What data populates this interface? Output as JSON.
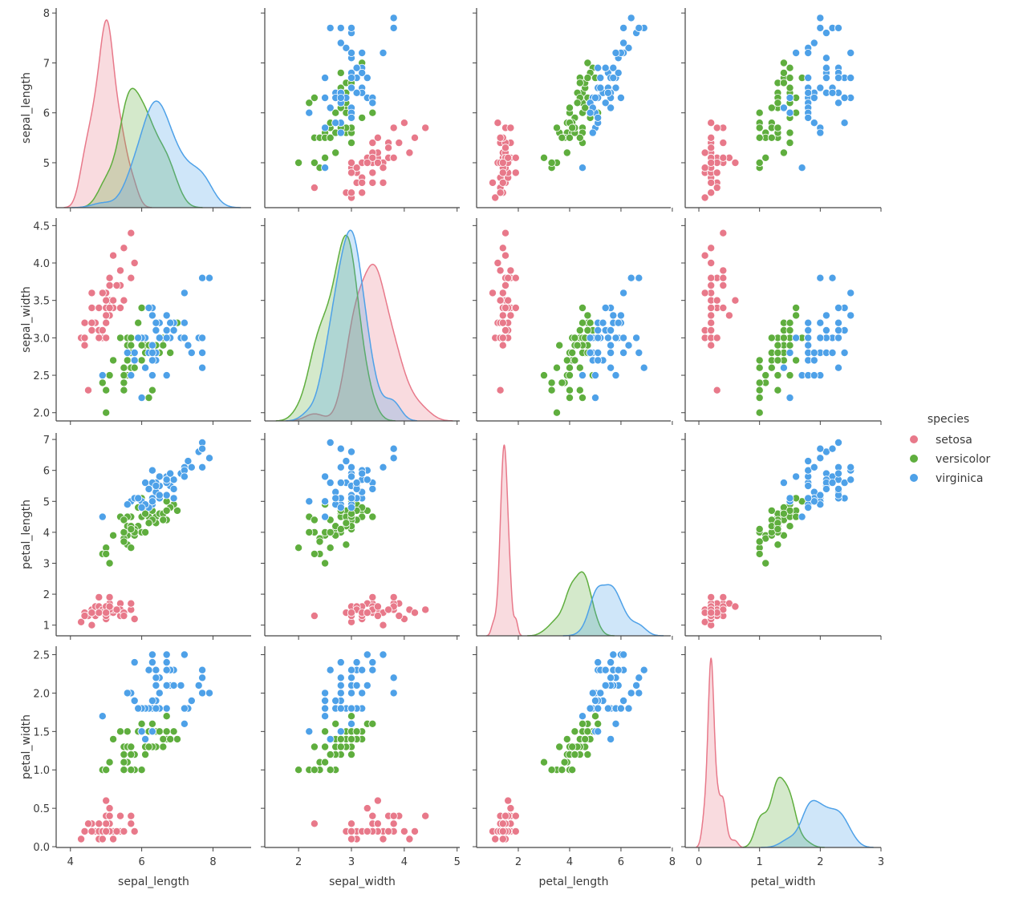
{
  "chart_data": {
    "type": "scatter",
    "title": "",
    "subtitle": "pairplot (scatter off-diagonal, KDE on diagonal)",
    "variables": [
      "sepal_length",
      "sepal_width",
      "petal_length",
      "petal_width"
    ],
    "axis_ranges": {
      "sepal_length": [
        3.6,
        9.07
      ],
      "sepal_width": [
        1.36,
        5.05
      ],
      "petal_length": [
        0.375,
        7.94
      ],
      "petal_width": [
        -0.225,
        3.0
      ]
    },
    "row_ranges": {
      "sepal_length": [
        4.1,
        8.1
      ],
      "sepal_width": [
        1.89,
        4.6
      ],
      "petal_length": [
        0.655,
        7.21
      ],
      "petal_width": [
        -0.01,
        2.61
      ]
    },
    "x_ticks": {
      "sepal_length": [
        "4",
        "6",
        "8"
      ],
      "sepal_width": [
        "2",
        "3",
        "4",
        "5"
      ],
      "petal_length": [
        "2",
        "4",
        "6",
        "8"
      ],
      "petal_width": [
        "0",
        "1",
        "2",
        "3"
      ]
    },
    "y_ticks": {
      "sepal_length": [
        "5",
        "6",
        "7",
        "8"
      ],
      "sepal_width": [
        "2.0",
        "2.5",
        "3.0",
        "3.5",
        "4.0",
        "4.5"
      ],
      "petal_length": [
        "1",
        "2",
        "3",
        "4",
        "5",
        "6",
        "7"
      ],
      "petal_width": [
        "0.0",
        "0.5",
        "1.0",
        "1.5",
        "2.0",
        "2.5"
      ]
    },
    "grid": false,
    "legend": {
      "title": "species",
      "placement": "right",
      "entries": [
        "setosa",
        "versicolor",
        "virginica"
      ]
    },
    "colors": {
      "setosa": "#e8798a",
      "versicolor": "#5fae3e",
      "virginica": "#4ea1e8"
    },
    "series": [
      {
        "name": "setosa",
        "points": [
          [
            5.1,
            3.5,
            1.4,
            0.2
          ],
          [
            4.9,
            3.0,
            1.4,
            0.2
          ],
          [
            4.7,
            3.2,
            1.3,
            0.2
          ],
          [
            4.6,
            3.1,
            1.5,
            0.2
          ],
          [
            5.0,
            3.6,
            1.4,
            0.2
          ],
          [
            5.4,
            3.9,
            1.7,
            0.4
          ],
          [
            4.6,
            3.4,
            1.4,
            0.3
          ],
          [
            5.0,
            3.4,
            1.5,
            0.2
          ],
          [
            4.4,
            2.9,
            1.4,
            0.2
          ],
          [
            4.9,
            3.1,
            1.5,
            0.1
          ],
          [
            5.4,
            3.7,
            1.5,
            0.2
          ],
          [
            4.8,
            3.4,
            1.6,
            0.2
          ],
          [
            4.8,
            3.0,
            1.4,
            0.1
          ],
          [
            4.3,
            3.0,
            1.1,
            0.1
          ],
          [
            5.8,
            4.0,
            1.2,
            0.2
          ],
          [
            5.7,
            4.4,
            1.5,
            0.4
          ],
          [
            5.4,
            3.9,
            1.3,
            0.4
          ],
          [
            5.1,
            3.5,
            1.4,
            0.3
          ],
          [
            5.7,
            3.8,
            1.7,
            0.3
          ],
          [
            5.1,
            3.8,
            1.5,
            0.3
          ],
          [
            5.4,
            3.4,
            1.7,
            0.2
          ],
          [
            5.1,
            3.7,
            1.5,
            0.4
          ],
          [
            4.6,
            3.6,
            1.0,
            0.2
          ],
          [
            5.1,
            3.3,
            1.7,
            0.5
          ],
          [
            4.8,
            3.4,
            1.9,
            0.2
          ],
          [
            5.0,
            3.0,
            1.6,
            0.2
          ],
          [
            5.0,
            3.4,
            1.6,
            0.4
          ],
          [
            5.2,
            3.5,
            1.5,
            0.2
          ],
          [
            5.2,
            3.4,
            1.4,
            0.2
          ],
          [
            4.7,
            3.2,
            1.6,
            0.2
          ],
          [
            4.8,
            3.1,
            1.6,
            0.2
          ],
          [
            5.4,
            3.4,
            1.5,
            0.4
          ],
          [
            5.2,
            4.1,
            1.5,
            0.1
          ],
          [
            5.5,
            4.2,
            1.4,
            0.2
          ],
          [
            4.9,
            3.1,
            1.5,
            0.2
          ],
          [
            5.0,
            3.2,
            1.2,
            0.2
          ],
          [
            5.5,
            3.5,
            1.3,
            0.2
          ],
          [
            4.9,
            3.6,
            1.4,
            0.1
          ],
          [
            4.4,
            3.0,
            1.3,
            0.2
          ],
          [
            5.1,
            3.4,
            1.5,
            0.2
          ],
          [
            5.0,
            3.5,
            1.3,
            0.3
          ],
          [
            4.5,
            2.3,
            1.3,
            0.3
          ],
          [
            4.4,
            3.2,
            1.3,
            0.2
          ],
          [
            5.0,
            3.5,
            1.6,
            0.6
          ],
          [
            5.1,
            3.8,
            1.9,
            0.4
          ],
          [
            4.8,
            3.0,
            1.4,
            0.3
          ],
          [
            5.1,
            3.8,
            1.6,
            0.2
          ],
          [
            4.6,
            3.2,
            1.4,
            0.2
          ],
          [
            5.3,
            3.7,
            1.5,
            0.2
          ],
          [
            5.0,
            3.3,
            1.4,
            0.2
          ]
        ]
      },
      {
        "name": "versicolor",
        "points": [
          [
            7.0,
            3.2,
            4.7,
            1.4
          ],
          [
            6.4,
            3.2,
            4.5,
            1.5
          ],
          [
            6.9,
            3.1,
            4.9,
            1.5
          ],
          [
            5.5,
            2.3,
            4.0,
            1.3
          ],
          [
            6.5,
            2.8,
            4.6,
            1.5
          ],
          [
            5.7,
            2.8,
            4.5,
            1.3
          ],
          [
            6.3,
            3.3,
            4.7,
            1.6
          ],
          [
            4.9,
            2.4,
            3.3,
            1.0
          ],
          [
            6.6,
            2.9,
            4.6,
            1.3
          ],
          [
            5.2,
            2.7,
            3.9,
            1.4
          ],
          [
            5.0,
            2.0,
            3.5,
            1.0
          ],
          [
            5.9,
            3.0,
            4.2,
            1.5
          ],
          [
            6.0,
            2.2,
            4.0,
            1.0
          ],
          [
            6.1,
            2.9,
            4.7,
            1.4
          ],
          [
            5.6,
            2.9,
            3.6,
            1.3
          ],
          [
            6.7,
            3.1,
            4.4,
            1.4
          ],
          [
            5.6,
            3.0,
            4.5,
            1.5
          ],
          [
            5.8,
            2.7,
            4.1,
            1.0
          ],
          [
            6.2,
            2.2,
            4.5,
            1.5
          ],
          [
            5.6,
            2.5,
            3.9,
            1.1
          ],
          [
            5.9,
            3.2,
            4.8,
            1.8
          ],
          [
            6.1,
            2.8,
            4.0,
            1.3
          ],
          [
            6.3,
            2.5,
            4.9,
            1.5
          ],
          [
            6.1,
            2.8,
            4.7,
            1.2
          ],
          [
            6.4,
            2.9,
            4.3,
            1.3
          ],
          [
            6.6,
            3.0,
            4.4,
            1.4
          ],
          [
            6.8,
            2.8,
            4.8,
            1.4
          ],
          [
            6.7,
            3.0,
            5.0,
            1.7
          ],
          [
            6.0,
            2.9,
            4.5,
            1.5
          ],
          [
            5.7,
            2.6,
            3.5,
            1.0
          ],
          [
            5.5,
            2.4,
            3.8,
            1.1
          ],
          [
            5.5,
            2.4,
            3.7,
            1.0
          ],
          [
            5.8,
            2.7,
            3.9,
            1.2
          ],
          [
            6.0,
            2.7,
            5.1,
            1.6
          ],
          [
            5.4,
            3.0,
            4.5,
            1.5
          ],
          [
            6.0,
            3.4,
            4.5,
            1.6
          ],
          [
            6.7,
            3.1,
            4.7,
            1.5
          ],
          [
            6.3,
            2.3,
            4.4,
            1.3
          ],
          [
            5.6,
            3.0,
            4.1,
            1.3
          ],
          [
            5.5,
            2.5,
            4.0,
            1.3
          ],
          [
            5.5,
            2.6,
            4.4,
            1.2
          ],
          [
            6.1,
            3.0,
            4.6,
            1.4
          ],
          [
            5.8,
            2.6,
            4.0,
            1.2
          ],
          [
            5.0,
            2.3,
            3.3,
            1.0
          ],
          [
            5.6,
            2.7,
            4.2,
            1.3
          ],
          [
            5.7,
            3.0,
            4.2,
            1.2
          ],
          [
            5.7,
            2.9,
            4.2,
            1.3
          ],
          [
            6.2,
            2.9,
            4.3,
            1.3
          ],
          [
            5.1,
            2.5,
            3.0,
            1.1
          ],
          [
            5.7,
            2.8,
            4.1,
            1.3
          ]
        ]
      },
      {
        "name": "virginica",
        "points": [
          [
            6.3,
            3.3,
            6.0,
            2.5
          ],
          [
            5.8,
            2.7,
            5.1,
            1.9
          ],
          [
            7.1,
            3.0,
            5.9,
            2.1
          ],
          [
            6.3,
            2.9,
            5.6,
            1.8
          ],
          [
            6.5,
            3.0,
            5.8,
            2.2
          ],
          [
            7.6,
            3.0,
            6.6,
            2.1
          ],
          [
            4.9,
            2.5,
            4.5,
            1.7
          ],
          [
            7.3,
            2.9,
            6.3,
            1.8
          ],
          [
            6.7,
            2.5,
            5.8,
            1.8
          ],
          [
            7.2,
            3.6,
            6.1,
            2.5
          ],
          [
            6.5,
            3.2,
            5.1,
            2.0
          ],
          [
            6.4,
            2.7,
            5.3,
            1.9
          ],
          [
            6.8,
            3.0,
            5.5,
            2.1
          ],
          [
            5.7,
            2.5,
            5.0,
            2.0
          ],
          [
            5.8,
            2.8,
            5.1,
            2.4
          ],
          [
            6.4,
            3.2,
            5.3,
            2.3
          ],
          [
            6.5,
            3.0,
            5.5,
            1.8
          ],
          [
            7.7,
            3.8,
            6.7,
            2.2
          ],
          [
            7.7,
            2.6,
            6.9,
            2.3
          ],
          [
            6.0,
            2.2,
            5.0,
            1.5
          ],
          [
            6.9,
            3.2,
            5.7,
            2.3
          ],
          [
            5.6,
            2.8,
            4.9,
            2.0
          ],
          [
            7.7,
            2.8,
            6.7,
            2.0
          ],
          [
            6.3,
            2.7,
            4.9,
            1.8
          ],
          [
            6.7,
            3.3,
            5.7,
            2.1
          ],
          [
            7.2,
            3.2,
            6.0,
            1.8
          ],
          [
            6.2,
            2.8,
            4.8,
            1.8
          ],
          [
            6.1,
            3.0,
            4.9,
            1.8
          ],
          [
            6.4,
            2.8,
            5.6,
            2.1
          ],
          [
            7.2,
            3.0,
            5.8,
            1.6
          ],
          [
            7.4,
            2.8,
            6.1,
            1.9
          ],
          [
            7.9,
            3.8,
            6.4,
            2.0
          ],
          [
            6.4,
            2.8,
            5.6,
            2.2
          ],
          [
            6.3,
            2.8,
            5.1,
            1.5
          ],
          [
            6.1,
            2.6,
            5.6,
            1.4
          ],
          [
            7.7,
            3.0,
            6.1,
            2.3
          ],
          [
            6.3,
            3.4,
            5.6,
            2.4
          ],
          [
            6.4,
            3.1,
            5.5,
            1.8
          ],
          [
            6.0,
            3.0,
            4.8,
            1.8
          ],
          [
            6.9,
            3.1,
            5.4,
            2.1
          ],
          [
            6.7,
            3.1,
            5.6,
            2.4
          ],
          [
            6.9,
            3.1,
            5.1,
            2.3
          ],
          [
            5.8,
            2.7,
            5.1,
            1.9
          ],
          [
            6.8,
            3.2,
            5.9,
            2.3
          ],
          [
            6.7,
            3.3,
            5.7,
            2.5
          ],
          [
            6.7,
            3.0,
            5.2,
            2.3
          ],
          [
            6.3,
            2.5,
            5.0,
            1.9
          ],
          [
            6.5,
            3.0,
            5.2,
            2.0
          ],
          [
            6.2,
            3.4,
            5.4,
            2.3
          ],
          [
            5.9,
            3.0,
            5.1,
            1.8
          ]
        ]
      }
    ]
  }
}
